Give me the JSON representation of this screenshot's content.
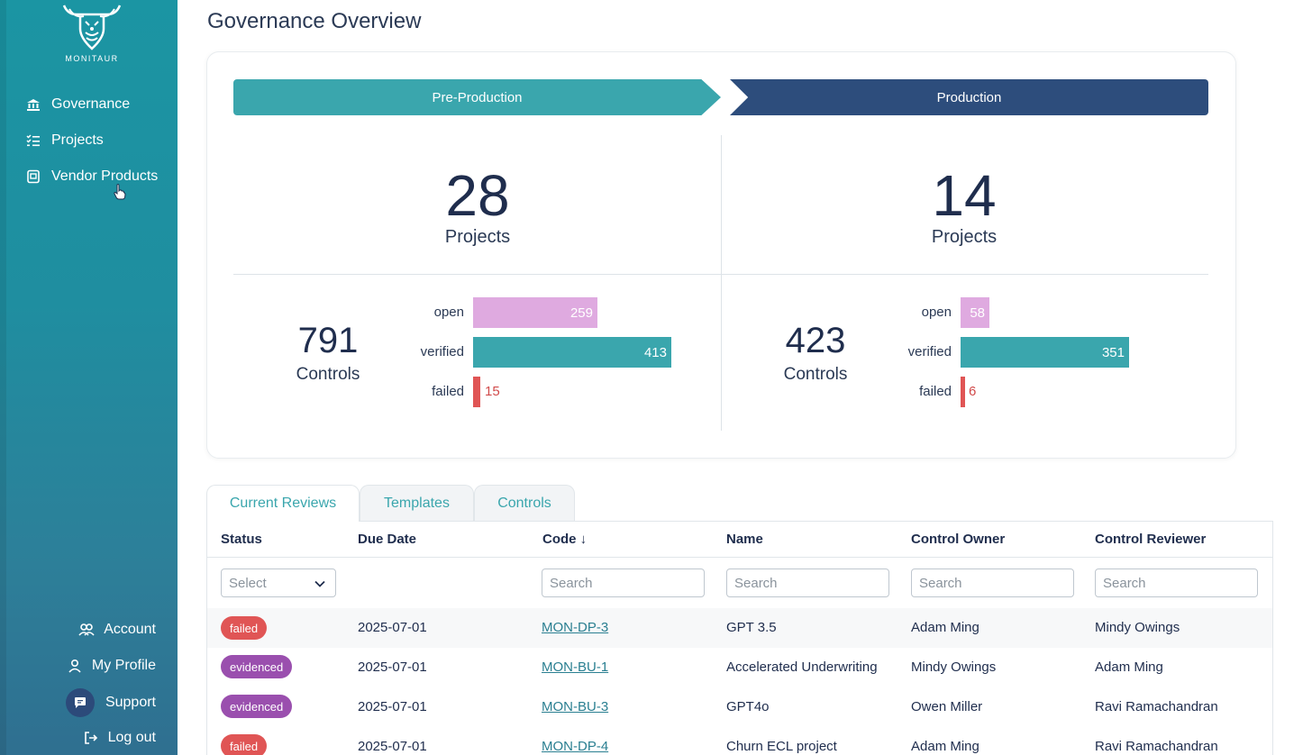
{
  "sidebar": {
    "brand": "MONITAUR",
    "nav": [
      {
        "label": "Governance",
        "icon": "bank-icon"
      },
      {
        "label": "Projects",
        "icon": "checklist-icon"
      },
      {
        "label": "Vendor Products",
        "icon": "vendor-icon"
      }
    ],
    "bottom": [
      {
        "label": "Account",
        "icon": "users-icon"
      },
      {
        "label": "My Profile",
        "icon": "user-icon"
      },
      {
        "label": "Support",
        "icon": "chat-icon"
      },
      {
        "label": "Log out",
        "icon": "logout-icon"
      }
    ]
  },
  "page": {
    "title": "Governance Overview"
  },
  "overview": {
    "pre": {
      "phase": "Pre-Production",
      "projects": "28",
      "projects_label": "Projects",
      "controls": "791",
      "controls_label": "Controls",
      "open": 259,
      "verified": 413,
      "failed": 15
    },
    "prod": {
      "phase": "Production",
      "projects": "14",
      "projects_label": "Projects",
      "controls": "423",
      "controls_label": "Controls",
      "open": 58,
      "verified": 351,
      "failed": 6
    },
    "labels": {
      "open": "open",
      "verified": "verified",
      "failed": "failed"
    },
    "colors": {
      "open": "#dfaae0",
      "verified": "#3aa6ad",
      "failed": "#e05555",
      "pre": "#3aa6ad",
      "prod": "#2d4d7c"
    }
  },
  "tabs": [
    "Current Reviews",
    "Templates",
    "Controls"
  ],
  "table": {
    "headers": [
      "Status",
      "Due Date",
      "Code ↓",
      "Name",
      "Control Owner",
      "Control Reviewer"
    ],
    "status_placeholder": "Select",
    "search_placeholder": "Search",
    "rows": [
      {
        "status": "failed",
        "due": "2025-07-01",
        "code": "MON-DP-3",
        "name": "GPT 3.5",
        "owner": "Adam Ming",
        "reviewer": "Mindy Owings"
      },
      {
        "status": "evidenced",
        "due": "2025-07-01",
        "code": "MON-BU-1",
        "name": "Accelerated Underwriting",
        "owner": "Mindy Owings",
        "reviewer": "Adam Ming"
      },
      {
        "status": "evidenced",
        "due": "2025-07-01",
        "code": "MON-BU-3",
        "name": "GPT4o",
        "owner": "Owen Miller",
        "reviewer": "Ravi Ramachandran"
      },
      {
        "status": "failed",
        "due": "2025-07-01",
        "code": "MON-DP-4",
        "name": "Churn ECL project",
        "owner": "Adam Ming",
        "reviewer": "Ravi Ramachandran"
      }
    ]
  }
}
